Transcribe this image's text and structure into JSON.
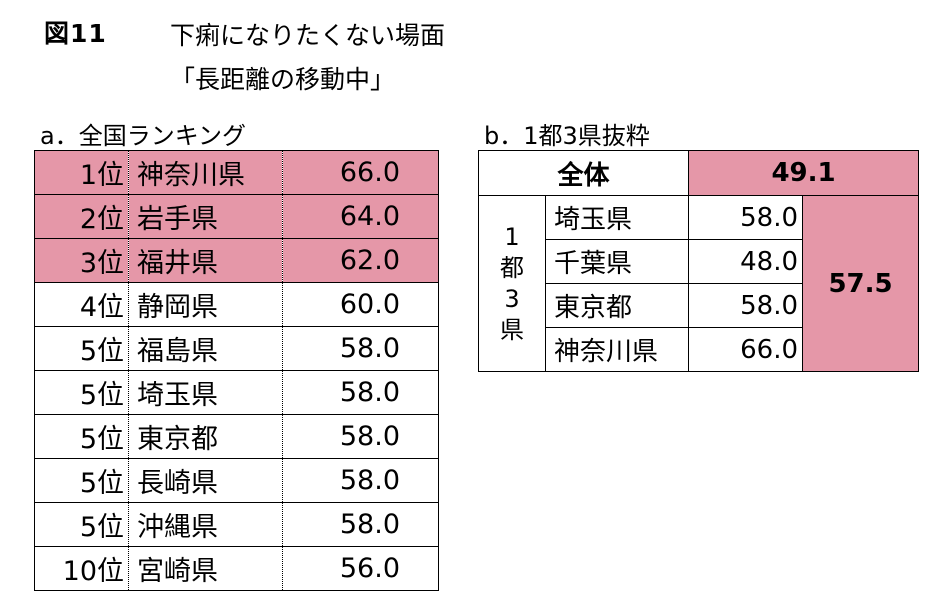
{
  "figure": {
    "label": "図11",
    "title_line1": "下痢になりたくない場面",
    "title_line2": "「長距離の移動中」"
  },
  "section_a": {
    "label": "a．全国ランキング",
    "rows": [
      {
        "rank": "1位",
        "prefecture": "神奈川県",
        "value": "66.0",
        "highlight": true
      },
      {
        "rank": "2位",
        "prefecture": "岩手県",
        "value": "64.0",
        "highlight": true
      },
      {
        "rank": "3位",
        "prefecture": "福井県",
        "value": "62.0",
        "highlight": true
      },
      {
        "rank": "4位",
        "prefecture": "静岡県",
        "value": "60.0",
        "highlight": false
      },
      {
        "rank": "5位",
        "prefecture": "福島県",
        "value": "58.0",
        "highlight": false
      },
      {
        "rank": "5位",
        "prefecture": "埼玉県",
        "value": "58.0",
        "highlight": false
      },
      {
        "rank": "5位",
        "prefecture": "東京都",
        "value": "58.0",
        "highlight": false
      },
      {
        "rank": "5位",
        "prefecture": "長崎県",
        "value": "58.0",
        "highlight": false
      },
      {
        "rank": "5位",
        "prefecture": "沖縄県",
        "value": "58.0",
        "highlight": false
      },
      {
        "rank": "10位",
        "prefecture": "宮崎県",
        "value": "56.0",
        "highlight": false
      }
    ]
  },
  "section_b": {
    "label": "b．1都3県抜粋",
    "total_label": "全体",
    "total_value": "49.1",
    "group_label": "1都3県",
    "group_label_chars": [
      "1",
      "都",
      "3",
      "県"
    ],
    "group_average": "57.5",
    "rows": [
      {
        "prefecture": "埼玉県",
        "value": "58.0"
      },
      {
        "prefecture": "千葉県",
        "value": "48.0"
      },
      {
        "prefecture": "東京都",
        "value": "58.0"
      },
      {
        "prefecture": "神奈川県",
        "value": "66.0"
      }
    ]
  },
  "colors": {
    "highlight": "#e597a8",
    "border": "#000000",
    "text": "#000000"
  }
}
